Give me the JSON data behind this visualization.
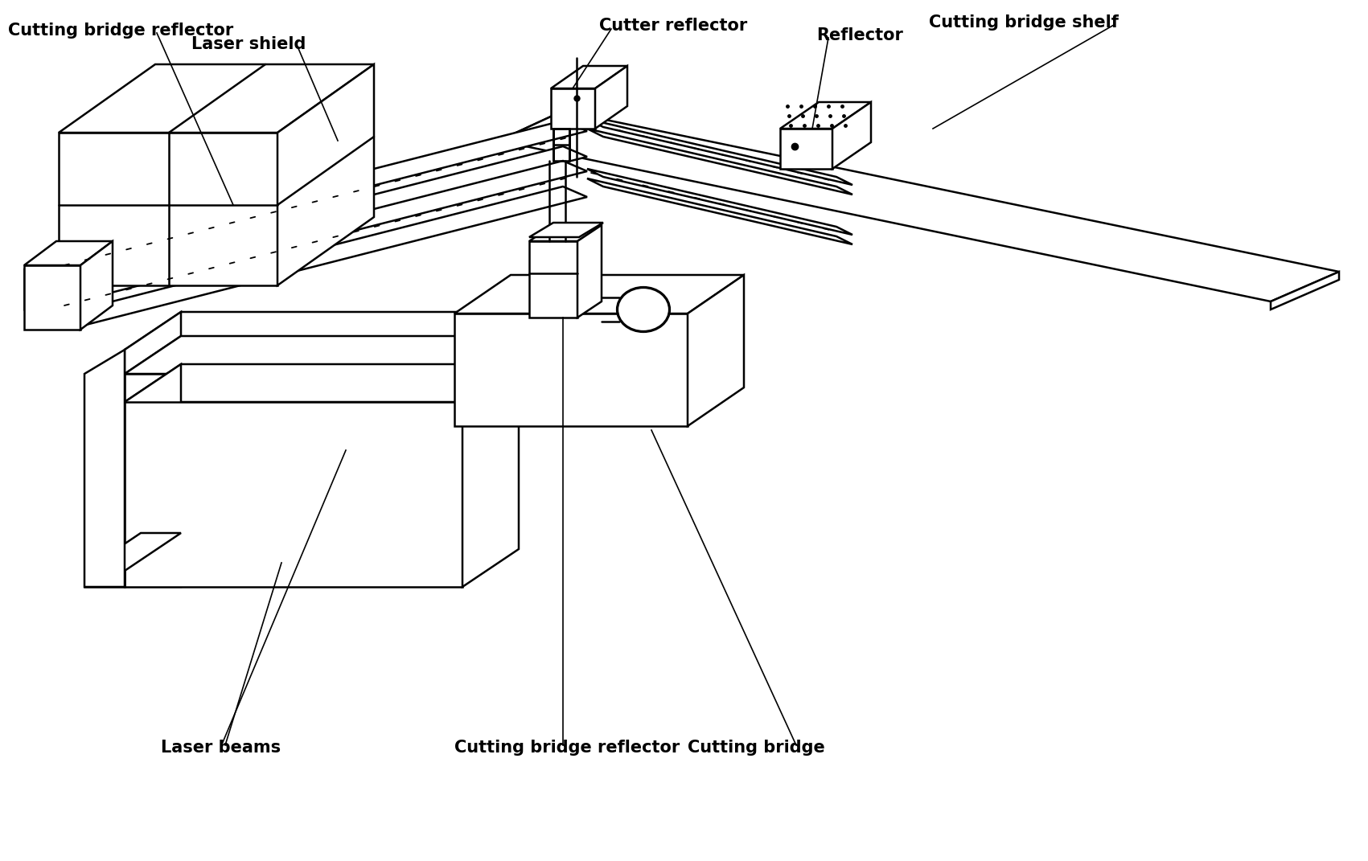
{
  "bg_color": "#ffffff",
  "line_color": "#000000",
  "lw": 1.8,
  "lw_thin": 1.2,
  "labels": {
    "cutting_bridge_reflector_top": "Cutting bridge reflector",
    "laser_shield": "Laser shield",
    "cutter_reflector": "Cutter reflector",
    "reflector": "Reflector",
    "cutting_bridge_shelf": "Cutting bridge shelf",
    "laser_beams": "Laser beams",
    "cutting_bridge_reflector_bottom": "Cutting bridge reflector",
    "cutting_bridge": "Cutting bridge"
  },
  "fontsize": 15,
  "fontweight": "bold"
}
